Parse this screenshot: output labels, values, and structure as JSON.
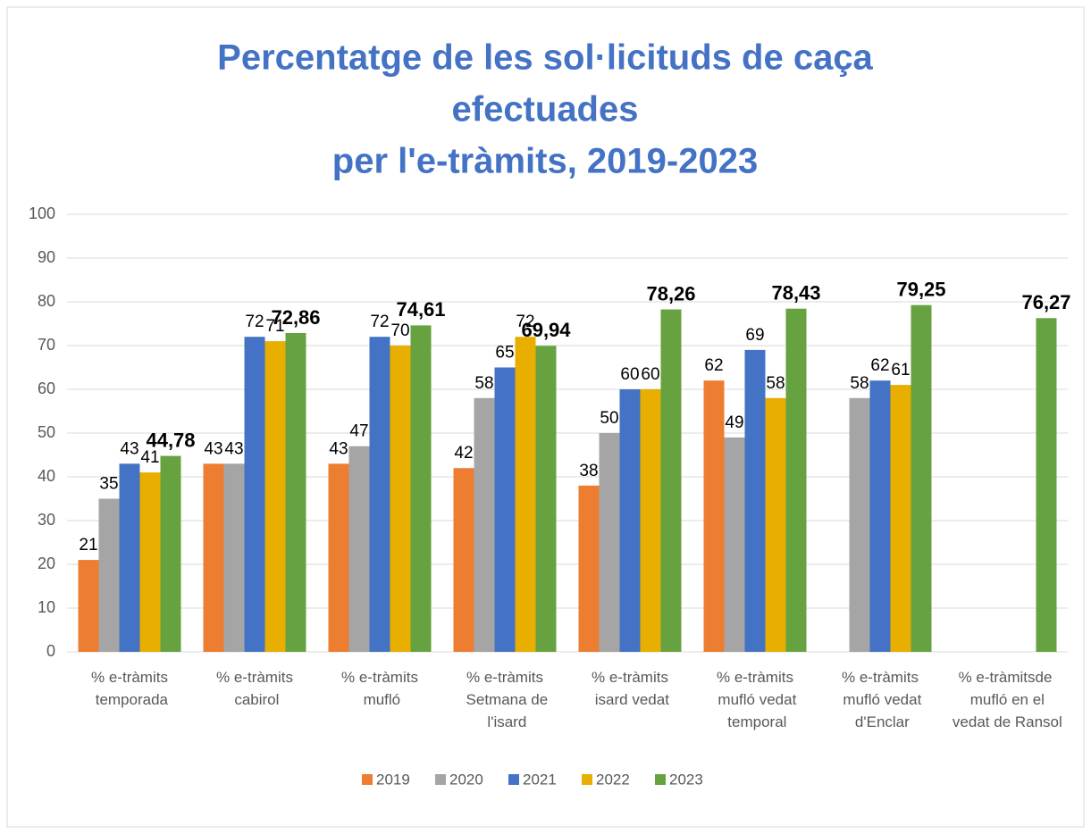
{
  "chart_data": {
    "type": "bar",
    "title": [
      "Percentatge de les sol·licituds de caça",
      "efectuades",
      "per l'e-tràmits, 2019-2023"
    ],
    "categories": [
      "% e-tràmits temporada",
      "% e-tràmits cabirol",
      "% e-tràmits mufló",
      "% e-tràmits Setmana de l'isard",
      "% e-tràmits isard vedat",
      "% e-tràmits mufló vedat temporal",
      "% e-tràmits mufló vedat d'Enclar",
      "% e-tràmitsde mufló en el vedat de Ransol"
    ],
    "series": [
      {
        "name": "2019",
        "color": "#ed7d31",
        "values": [
          21,
          43,
          43,
          42,
          38,
          62,
          null,
          null
        ]
      },
      {
        "name": "2020",
        "color": "#a5a5a5",
        "values": [
          35,
          43,
          47,
          58,
          50,
          49,
          58,
          null
        ]
      },
      {
        "name": "2021",
        "color": "#4472c4",
        "values": [
          43,
          72,
          72,
          65,
          60,
          69,
          62,
          null
        ]
      },
      {
        "name": "2022",
        "color": "#e8ae00",
        "values": [
          41,
          71,
          70,
          72,
          60,
          58,
          61,
          null
        ]
      },
      {
        "name": "2023",
        "color": "#66a23f",
        "values": [
          44.78,
          72.86,
          74.61,
          69.94,
          78.26,
          78.43,
          79.25,
          76.27
        ],
        "value_labels": [
          "44,78",
          "72,86",
          "74,61",
          "69,94",
          "78,26",
          "78,43",
          "79,25",
          "76,27"
        ]
      }
    ],
    "ylim": [
      0,
      100
    ],
    "yticks": [
      0,
      10,
      20,
      30,
      40,
      50,
      60,
      70,
      80,
      90,
      100
    ],
    "grid": true,
    "legend": "bottom"
  }
}
